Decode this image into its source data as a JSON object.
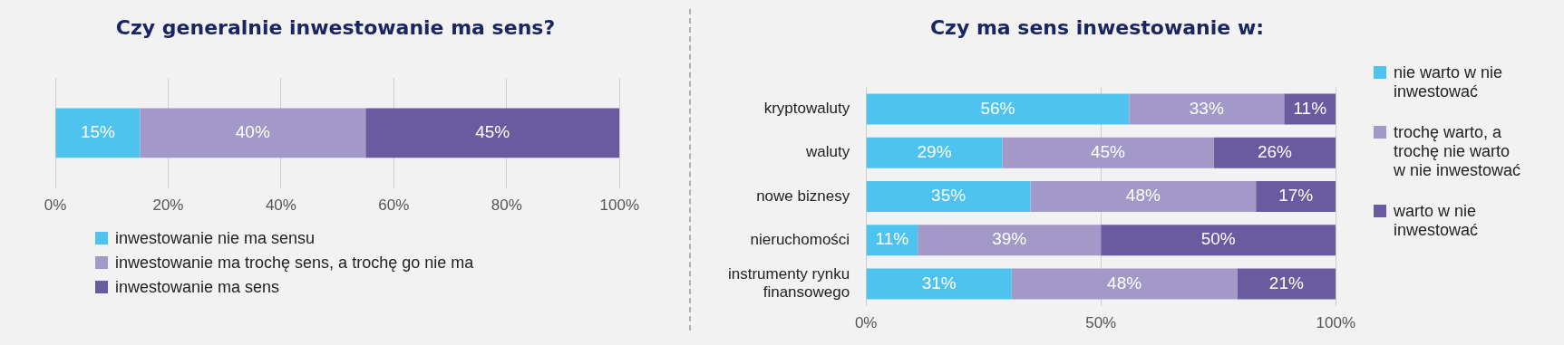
{
  "chart_data": [
    {
      "type": "bar",
      "orientation": "horizontal",
      "stacked": true,
      "title": "Czy generalnie inwestowanie ma sens?",
      "categories": [
        null
      ],
      "xlim": [
        0,
        100
      ],
      "xticks": [
        {
          "value": 0,
          "label": "0%"
        },
        {
          "value": 20,
          "label": "20%"
        },
        {
          "value": 40,
          "label": "40%"
        },
        {
          "value": 60,
          "label": "60%"
        },
        {
          "value": 80,
          "label": "80%"
        },
        {
          "value": 100,
          "label": "100%"
        }
      ],
      "grid": "x",
      "legend": "bottom",
      "series": [
        {
          "name": "inwestowanie nie ma sensu",
          "color": "#4fc3f0",
          "values": [
            15
          ],
          "value_labels": [
            "15%"
          ]
        },
        {
          "name": "inwestowanie ma trochę sens, a trochę go nie ma",
          "color": "#a399c8",
          "values": [
            40
          ],
          "value_labels": [
            "40%"
          ]
        },
        {
          "name": "inwestowanie ma sens",
          "color": "#6a5aa0",
          "values": [
            45
          ],
          "value_labels": [
            "45%"
          ]
        }
      ]
    },
    {
      "type": "bar",
      "orientation": "horizontal",
      "stacked": true,
      "title": "Czy ma sens inwestowanie w:",
      "categories": [
        "kryptowaluty",
        "waluty",
        "nowe biznesy",
        "nieruchomości",
        "instrumenty rynku finansowego"
      ],
      "xlim": [
        0,
        100
      ],
      "xticks": [
        {
          "value": 0,
          "label": "0%"
        },
        {
          "value": 50,
          "label": "50%"
        },
        {
          "value": 100,
          "label": "100%"
        }
      ],
      "grid": "x",
      "legend": "right",
      "series": [
        {
          "name": "nie warto w nie inwestować",
          "color": "#4fc3f0",
          "values": [
            56,
            29,
            35,
            11,
            31
          ],
          "value_labels": [
            "56%",
            "29%",
            "35%",
            "11%",
            "31%"
          ]
        },
        {
          "name": "trochę warto, a trochę nie warto w nie inwestować",
          "color": "#a399c8",
          "values": [
            33,
            45,
            48,
            39,
            48
          ],
          "value_labels": [
            "33%",
            "45%",
            "48%",
            "39%",
            "48%"
          ]
        },
        {
          "name": "warto w nie inwestować",
          "color": "#6a5aa0",
          "values": [
            11,
            26,
            17,
            50,
            21
          ],
          "value_labels": [
            "11%",
            "26%",
            "17%",
            "50%",
            "21%"
          ]
        }
      ]
    }
  ]
}
